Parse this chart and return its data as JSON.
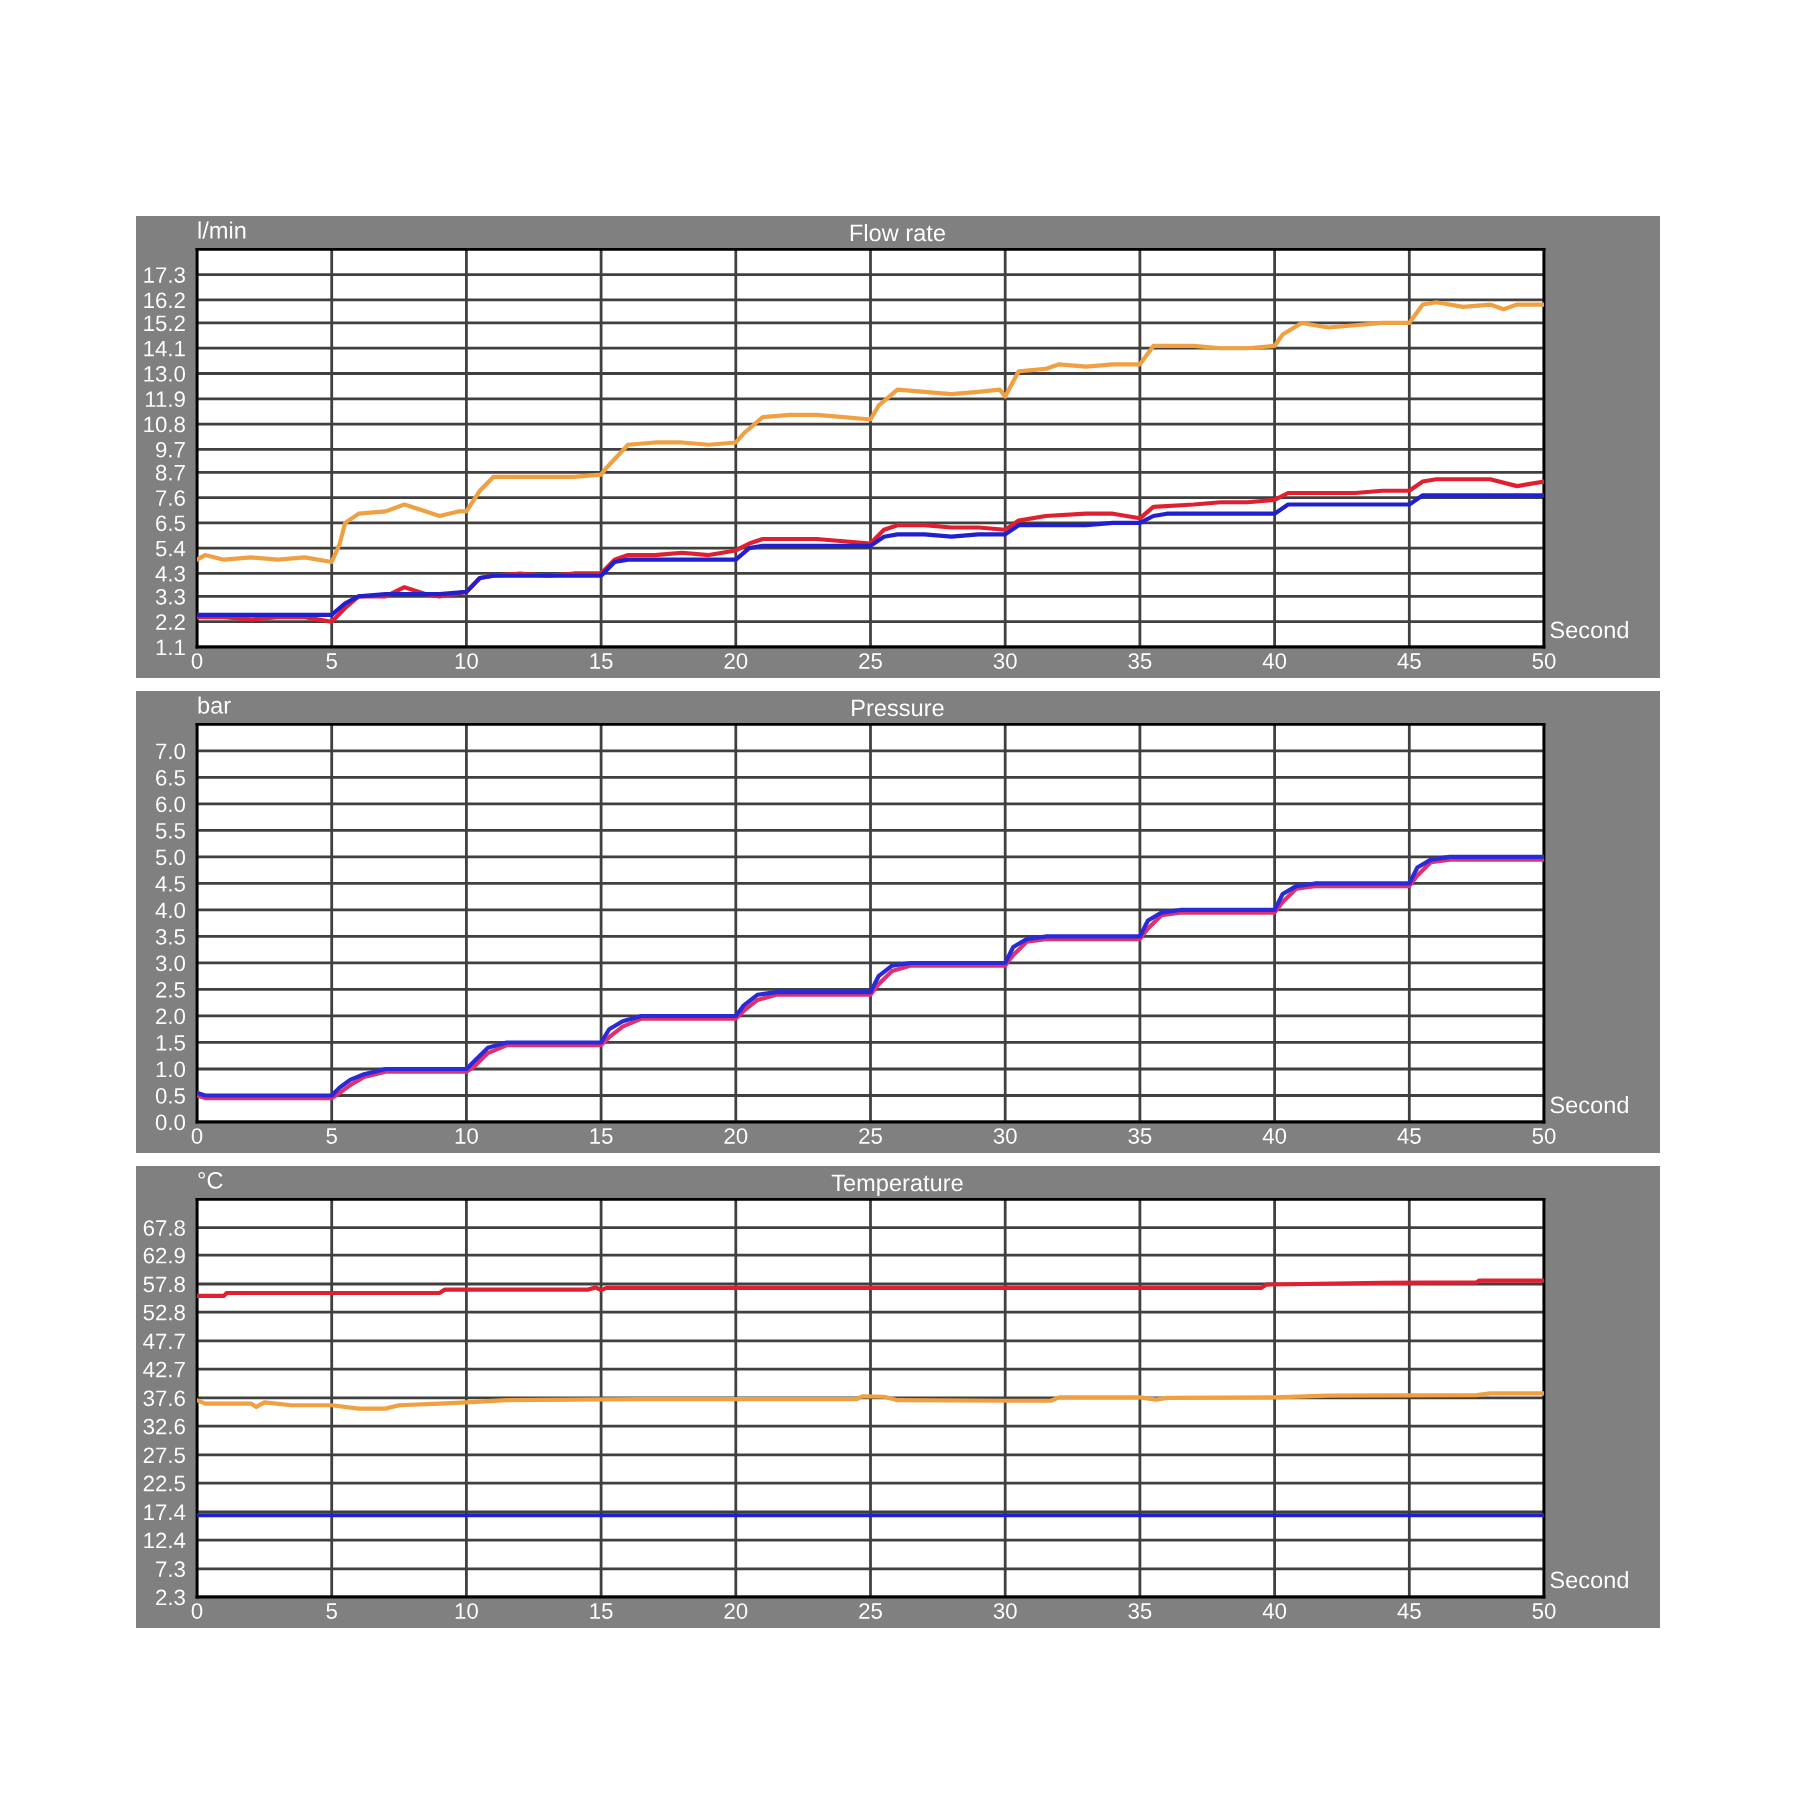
{
  "chart_data": [
    {
      "type": "line",
      "title": "Flow rate",
      "ylabel": "l/min",
      "xlabel": "Second",
      "xlim": [
        0,
        50
      ],
      "xticks": [
        0,
        5,
        10,
        15,
        20,
        25,
        30,
        35,
        40,
        45,
        50
      ],
      "ylim": [
        1.1,
        18.4
      ],
      "yticks": [
        1.1,
        2.2,
        3.3,
        4.3,
        5.4,
        6.5,
        7.6,
        8.7,
        9.7,
        10.8,
        11.9,
        {
          "value": 13,
          "label": "13.0"
        },
        14.1,
        15.2,
        16.2,
        17.3
      ],
      "grid": true,
      "series": [
        {
          "color": "#f0a040",
          "x": [
            0,
            0.3,
            1,
            2,
            3,
            4,
            5,
            5.3,
            5.5,
            6,
            7,
            7.7,
            8.5,
            9,
            9.7,
            10,
            10.5,
            11,
            12,
            13,
            14,
            15,
            15.2,
            16,
            17,
            18,
            19,
            20,
            20.3,
            21,
            22,
            23,
            24,
            25,
            25.3,
            26,
            27,
            28,
            29,
            29.8,
            30,
            30.5,
            31.5,
            32,
            33,
            34,
            35,
            35.5,
            36,
            37,
            38,
            39,
            40,
            40.3,
            41,
            42,
            43,
            44,
            45,
            45.5,
            46,
            47,
            48,
            48.5,
            49,
            50
          ],
          "values": [
            4.9,
            5.1,
            4.9,
            5.0,
            4.9,
            5.0,
            4.8,
            5.6,
            6.5,
            6.9,
            7.0,
            7.3,
            7.0,
            6.8,
            7.0,
            7.0,
            7.9,
            8.5,
            8.5,
            8.5,
            8.5,
            8.6,
            8.9,
            9.9,
            10.0,
            10.0,
            9.9,
            10.0,
            10.4,
            11.1,
            11.2,
            11.2,
            11.1,
            11.0,
            11.6,
            12.3,
            12.2,
            12.1,
            12.2,
            12.3,
            12.0,
            13.1,
            13.2,
            13.4,
            13.3,
            13.4,
            13.4,
            14.2,
            14.2,
            14.2,
            14.1,
            14.1,
            14.2,
            14.7,
            15.2,
            15.0,
            15.1,
            15.2,
            15.2,
            16.0,
            16.1,
            15.9,
            16.0,
            15.8,
            16.0,
            16.0
          ]
        },
        {
          "color": "#e02030",
          "x": [
            0,
            1,
            2,
            3,
            4,
            5,
            5.5,
            6,
            7,
            7.7,
            8.5,
            9,
            10,
            10.5,
            11,
            12,
            13,
            14,
            15,
            15.5,
            16,
            17,
            18,
            19,
            20,
            20.5,
            21,
            22,
            23,
            24,
            25,
            25.5,
            26,
            27,
            28,
            29,
            30,
            30.5,
            31.5,
            33,
            34,
            35,
            35.5,
            37,
            38,
            39,
            40,
            40.5,
            42,
            43,
            44,
            45,
            45.5,
            46,
            47,
            48,
            49,
            50
          ],
          "values": [
            2.4,
            2.4,
            2.3,
            2.4,
            2.4,
            2.2,
            2.8,
            3.3,
            3.3,
            3.7,
            3.4,
            3.3,
            3.5,
            4.1,
            4.2,
            4.3,
            4.2,
            4.3,
            4.3,
            4.9,
            5.1,
            5.1,
            5.2,
            5.1,
            5.3,
            5.6,
            5.8,
            5.8,
            5.8,
            5.7,
            5.6,
            6.2,
            6.4,
            6.4,
            6.3,
            6.3,
            6.2,
            6.6,
            6.8,
            6.9,
            6.9,
            6.7,
            7.2,
            7.3,
            7.4,
            7.4,
            7.5,
            7.8,
            7.8,
            7.8,
            7.9,
            7.9,
            8.3,
            8.4,
            8.4,
            8.4,
            8.1,
            8.3
          ]
        },
        {
          "color": "#2020d0",
          "x": [
            0,
            1,
            2,
            3,
            4,
            5,
            5.5,
            6,
            7,
            8,
            9,
            10,
            10.5,
            11,
            12,
            13,
            14,
            15,
            15.5,
            16,
            17,
            18,
            19,
            20,
            20.5,
            21,
            22,
            23,
            24,
            25,
            25.5,
            26,
            27,
            28,
            29,
            30,
            30.5,
            31,
            32,
            33,
            34,
            35,
            35.5,
            36,
            37,
            38,
            39,
            40,
            40.5,
            41,
            42,
            43,
            44,
            45,
            45.5,
            46,
            47,
            48,
            49,
            50
          ],
          "values": [
            2.5,
            2.5,
            2.5,
            2.5,
            2.5,
            2.5,
            3.0,
            3.3,
            3.4,
            3.4,
            3.4,
            3.5,
            4.1,
            4.2,
            4.2,
            4.2,
            4.2,
            4.2,
            4.8,
            4.9,
            4.9,
            4.9,
            4.9,
            4.9,
            5.4,
            5.5,
            5.5,
            5.5,
            5.5,
            5.5,
            5.9,
            6.0,
            6.0,
            5.9,
            6.0,
            6.0,
            6.4,
            6.4,
            6.4,
            6.4,
            6.5,
            6.5,
            6.8,
            6.9,
            6.9,
            6.9,
            6.9,
            6.9,
            7.3,
            7.3,
            7.3,
            7.3,
            7.3,
            7.3,
            7.7,
            7.7,
            7.7,
            7.7,
            7.7,
            7.7
          ]
        }
      ]
    },
    {
      "type": "line",
      "title": "Pressure",
      "ylabel": "bar",
      "xlabel": "Second",
      "xlim": [
        0,
        50
      ],
      "xticks": [
        0,
        5,
        10,
        15,
        20,
        25,
        30,
        35,
        40,
        45,
        50
      ],
      "ylim": [
        0,
        7.5
      ],
      "yticks": [
        {
          "value": 0,
          "label": "0.0"
        },
        0.5,
        {
          "value": 1,
          "label": "1.0"
        },
        1.5,
        {
          "value": 2,
          "label": "2.0"
        },
        2.5,
        {
          "value": 3,
          "label": "3.0"
        },
        3.5,
        {
          "value": 4,
          "label": "4.0"
        },
        4.5,
        {
          "value": 5,
          "label": "5.0"
        },
        5.5,
        {
          "value": 6,
          "label": "6.0"
        },
        6.5,
        {
          "value": 7,
          "label": "7.0"
        }
      ],
      "grid": true,
      "series": [
        {
          "color": "#e03070",
          "x": [
            0,
            0.3,
            5,
            5.3,
            5.7,
            6.2,
            7,
            10,
            10.3,
            10.8,
            11.5,
            15,
            15.3,
            15.8,
            16.5,
            20,
            20.3,
            20.8,
            21.5,
            25,
            25.3,
            25.8,
            26.5,
            30,
            30.3,
            30.8,
            31.5,
            35,
            35.3,
            35.8,
            36.5,
            40,
            40.3,
            40.8,
            41.5,
            45,
            45.3,
            45.8,
            46.5,
            50
          ],
          "values": [
            0.5,
            0.45,
            0.45,
            0.55,
            0.7,
            0.85,
            0.95,
            0.95,
            1.05,
            1.3,
            1.45,
            1.45,
            1.6,
            1.8,
            1.95,
            1.95,
            2.1,
            2.3,
            2.4,
            2.4,
            2.6,
            2.85,
            2.95,
            2.95,
            3.15,
            3.4,
            3.45,
            3.45,
            3.65,
            3.9,
            3.95,
            3.95,
            4.15,
            4.4,
            4.45,
            4.45,
            4.65,
            4.9,
            4.95,
            4.95
          ]
        },
        {
          "color": "#2a2ad8",
          "x": [
            0,
            0.3,
            5,
            5.3,
            5.7,
            6.2,
            7,
            10,
            10.3,
            10.8,
            11.5,
            15,
            15.3,
            15.8,
            16.5,
            20,
            20.3,
            20.8,
            21.5,
            25,
            25.3,
            25.8,
            26.5,
            30,
            30.3,
            30.8,
            31.5,
            35,
            35.3,
            35.8,
            36.5,
            40,
            40.3,
            40.8,
            41.5,
            45,
            45.3,
            45.8,
            46.5,
            50
          ],
          "values": [
            0.55,
            0.5,
            0.5,
            0.65,
            0.8,
            0.9,
            1.0,
            1.0,
            1.15,
            1.4,
            1.5,
            1.5,
            1.75,
            1.9,
            2.0,
            2.0,
            2.2,
            2.4,
            2.45,
            2.45,
            2.75,
            2.95,
            3.0,
            3.0,
            3.3,
            3.45,
            3.5,
            3.5,
            3.8,
            3.95,
            4.0,
            4.0,
            4.3,
            4.45,
            4.5,
            4.5,
            4.8,
            4.95,
            5.0,
            5.0
          ]
        }
      ]
    },
    {
      "type": "line",
      "title": "Temperature",
      "ylabel": "°C",
      "xlabel": "Second",
      "xlim": [
        0,
        50
      ],
      "xticks": [
        0,
        5,
        10,
        15,
        20,
        25,
        30,
        35,
        40,
        45,
        50
      ],
      "ylim": [
        2.3,
        72.8
      ],
      "yticks": [
        2.3,
        7.3,
        12.4,
        17.4,
        22.5,
        27.5,
        32.6,
        37.6,
        42.7,
        47.7,
        52.8,
        57.8,
        62.9,
        67.8
      ],
      "grid": true,
      "series": [
        {
          "color": "#e02030",
          "x": [
            0,
            1,
            1.1,
            9,
            9.2,
            14.5,
            14.8,
            15,
            15.2,
            22,
            30,
            39.5,
            39.7,
            44,
            47.5,
            47.6,
            50
          ],
          "values": [
            55.7,
            55.7,
            56.2,
            56.2,
            56.8,
            56.8,
            57.2,
            56.7,
            57.1,
            57.1,
            57.1,
            57.1,
            57.7,
            58.0,
            58.1,
            58.4,
            58.4
          ]
        },
        {
          "color": "#f0a040",
          "x": [
            0,
            0.3,
            2,
            2.2,
            2.5,
            3.5,
            5,
            6,
            7,
            7.5,
            9,
            10,
            11.5,
            16.5,
            20,
            24.5,
            24.7,
            25.5,
            26,
            30,
            31.7,
            32,
            35,
            35.6,
            36,
            40,
            42,
            47.5,
            48,
            50
          ],
          "values": [
            37.2,
            36.6,
            36.6,
            36.0,
            36.8,
            36.3,
            36.3,
            35.7,
            35.7,
            36.3,
            36.6,
            36.8,
            37.2,
            37.4,
            37.4,
            37.4,
            37.9,
            37.8,
            37.2,
            37.1,
            37.1,
            37.7,
            37.7,
            37.3,
            37.6,
            37.7,
            38.0,
            38.1,
            38.4,
            38.4
          ]
        },
        {
          "color": "#2020d0",
          "x": [
            0,
            25,
            50
          ],
          "values": [
            16.8,
            16.8,
            16.8
          ]
        }
      ]
    }
  ]
}
